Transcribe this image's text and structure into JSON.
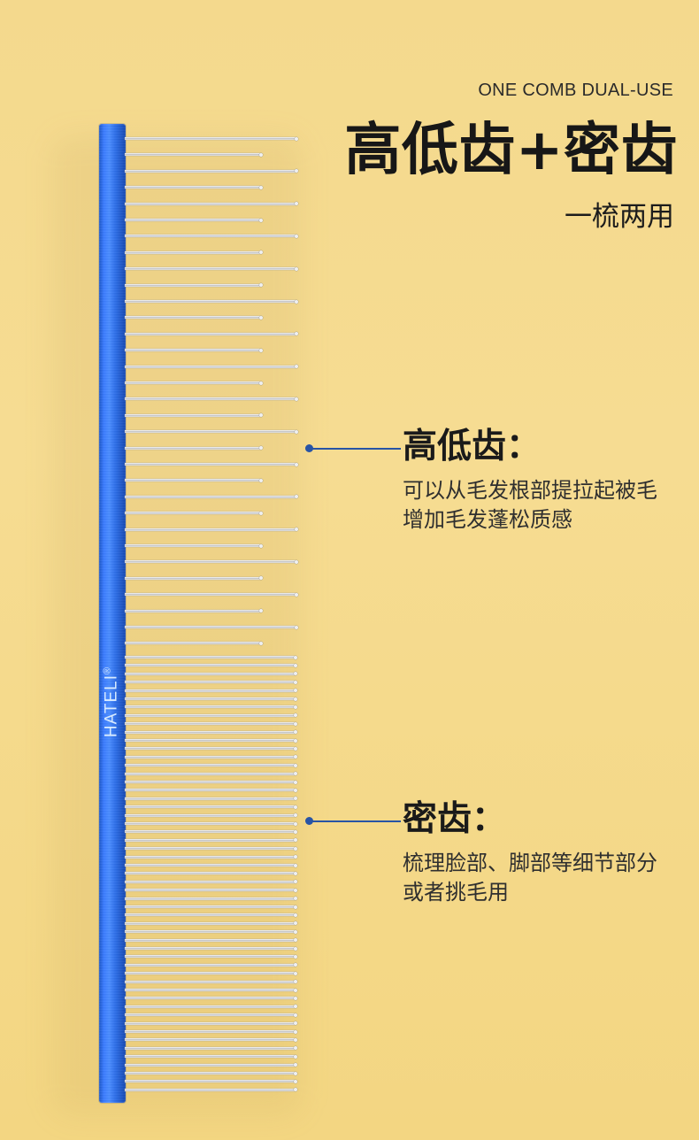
{
  "header": {
    "tag": "ONE COMB DUAL-USE",
    "title": "高低齿+密齿",
    "subtitle": "一梳两用"
  },
  "comb": {
    "brand": "HATELI",
    "brand_mark": "®",
    "spine_color": "#2f6ff0",
    "tooth_color": "#d9d9d9"
  },
  "callouts": [
    {
      "title": "高低齿：",
      "desc": "可以从毛发根部提拉起被毛增加毛发蓬松质感",
      "accent": "#2854a5"
    },
    {
      "title": "密齿：",
      "desc": "梳理脸部、脚部等细节部分或者挑毛用",
      "accent": "#2854a5"
    }
  ]
}
